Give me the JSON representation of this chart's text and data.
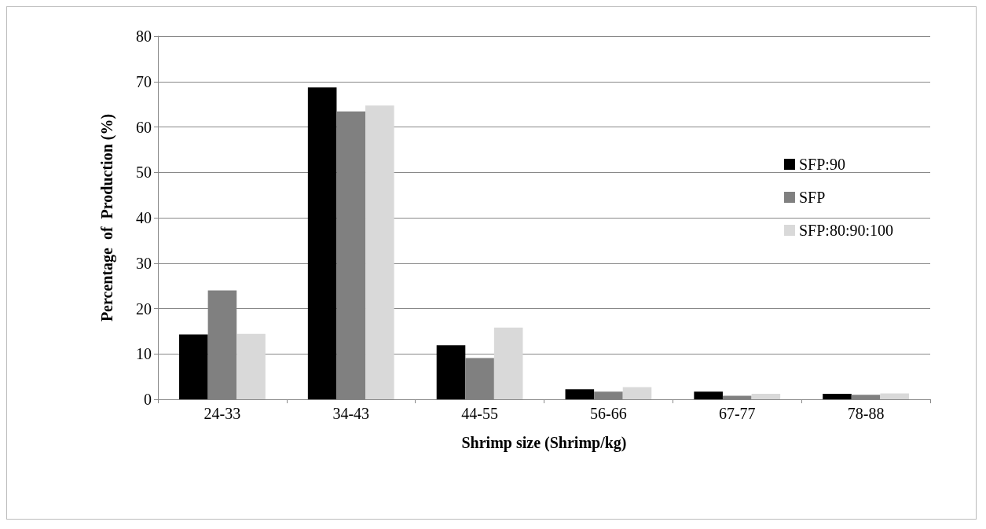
{
  "chart_data": {
    "type": "bar",
    "xlabel": "Shrimp size (Shrimp/kg)",
    "ylabel": "Percentage  of  Production (%)",
    "categories": [
      "24-33",
      "34-43",
      "44-55",
      "56-66",
      "67-77",
      "78-88"
    ],
    "series": [
      {
        "name": "SFP:90",
        "color": "#000000",
        "values": [
          14.3,
          68.7,
          11.9,
          2.2,
          1.7,
          1.2
        ]
      },
      {
        "name": "SFP",
        "color": "#808080",
        "values": [
          24.0,
          63.4,
          9.1,
          1.7,
          0.8,
          1.0
        ]
      },
      {
        "name": "SFP:80:90:100",
        "color": "#d9d9d9",
        "values": [
          14.4,
          64.7,
          15.8,
          2.7,
          1.2,
          1.3
        ]
      }
    ],
    "ylim": [
      0,
      80
    ],
    "yticks": [
      0,
      10,
      20,
      30,
      40,
      50,
      60,
      70,
      80
    ],
    "grid": "y",
    "legend": "right"
  }
}
